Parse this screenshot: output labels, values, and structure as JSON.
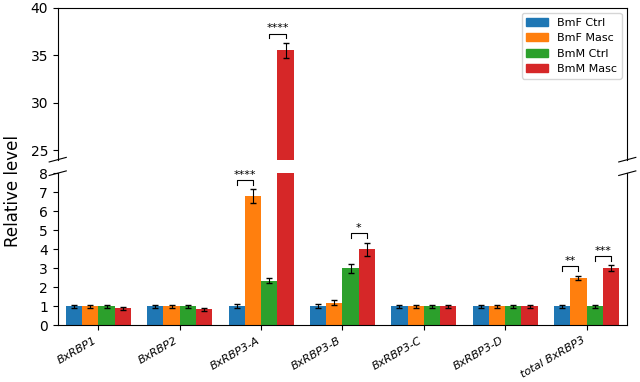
{
  "chart_data": {
    "type": "bar",
    "ylabel": "Relative level",
    "categories": [
      "BxRBP1",
      "BxRBP2",
      "BxRBP3-A",
      "BxRBP3-B",
      "BxRBP3-C",
      "BxRBP3-D",
      "total BxRBP3"
    ],
    "series": [
      {
        "name": "BmF Ctrl",
        "values": [
          1.0,
          1.0,
          1.0,
          1.0,
          1.0,
          1.0,
          1.0
        ],
        "errors": [
          0.07,
          0.07,
          0.1,
          0.1,
          0.07,
          0.07,
          0.07
        ]
      },
      {
        "name": "BmF Masc",
        "values": [
          1.0,
          1.0,
          6.8,
          1.2,
          1.0,
          1.0,
          2.5
        ],
        "errors": [
          0.07,
          0.07,
          0.35,
          0.15,
          0.07,
          0.07,
          0.12
        ]
      },
      {
        "name": "BmM Ctrl",
        "values": [
          1.0,
          1.0,
          2.35,
          3.0,
          1.0,
          1.0,
          1.0
        ],
        "errors": [
          0.07,
          0.07,
          0.12,
          0.25,
          0.07,
          0.07,
          0.07
        ]
      },
      {
        "name": "BmM Masc",
        "values": [
          0.9,
          0.85,
          35.5,
          4.0,
          1.0,
          1.0,
          3.0
        ],
        "errors": [
          0.07,
          0.07,
          0.8,
          0.35,
          0.07,
          0.07,
          0.15
        ]
      }
    ],
    "ylim": [
      [
        0,
        8
      ],
      [
        24,
        40
      ]
    ],
    "yticks": [
      [
        0,
        1,
        2,
        3,
        4,
        5,
        6,
        7,
        8
      ],
      [
        25,
        30,
        35,
        40
      ]
    ],
    "legend": "upper right",
    "annotations": [
      {
        "text": "****",
        "category": "BxRBP3-A",
        "series": [
          "BmF Ctrl",
          "BmF Masc"
        ]
      },
      {
        "text": "****",
        "category": "BxRBP3-A",
        "series": [
          "BmM Ctrl",
          "BmM Masc"
        ]
      },
      {
        "text": "*",
        "category": "BxRBP3-B",
        "series": [
          "BmM Ctrl",
          "BmM Masc"
        ]
      },
      {
        "text": "**",
        "category": "total BxRBP3",
        "series": [
          "BmF Ctrl",
          "BmF Masc"
        ]
      },
      {
        "text": "***",
        "category": "total BxRBP3",
        "series": [
          "BmM Ctrl",
          "BmM Masc"
        ]
      }
    ]
  }
}
